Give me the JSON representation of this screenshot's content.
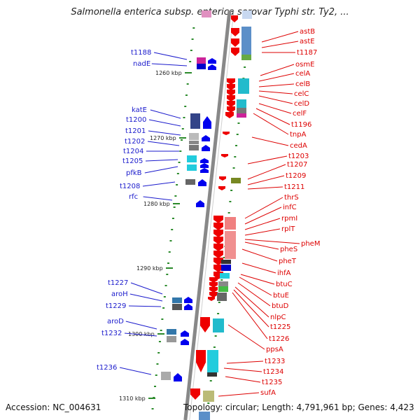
{
  "title": "Salmonella enterica subsp. enterica serovar Typhi str. Ty2, ...",
  "accession": "Accession: NC_004631",
  "topology": "Topology: circular; Length: 4,791,961 bp; Genes: 4,423",
  "colors": {
    "backbone": "#888888",
    "plus_strand": "#0000ee",
    "minus_strand": "#ee0000",
    "label_blue": "#1a1acc",
    "label_red": "#dd0000"
  },
  "kbp_marks": [
    "1260 kbp",
    "1270 kbp",
    "1280 kbp",
    "1290 kbp",
    "1300 kbp",
    "1310 kbp"
  ],
  "left_labels": [
    "t1188",
    "nadE",
    "katE",
    "t1200",
    "t1201",
    "t1202",
    "t1204",
    "t1205",
    "pfkB",
    "t1208",
    "rfc",
    "t1227",
    "aroH",
    "t1229",
    "aroD",
    "t1232",
    "t1236"
  ],
  "right_labels": [
    "astB",
    "astE",
    "t1187",
    "osmE",
    "celA",
    "celB",
    "celC",
    "celD",
    "celF",
    "t1196",
    "tnpA",
    "cedA",
    "t1203",
    "t1207",
    "t1209",
    "t1211",
    "thrS",
    "infC",
    "rpmI",
    "rplT",
    "pheM",
    "pheS",
    "pheT",
    "ihfA",
    "btuC",
    "btuE",
    "btuD",
    "nlpC",
    "t1225",
    "t1226",
    "ppsA",
    "t1233",
    "t1234",
    "t1235",
    "sufA"
  ]
}
